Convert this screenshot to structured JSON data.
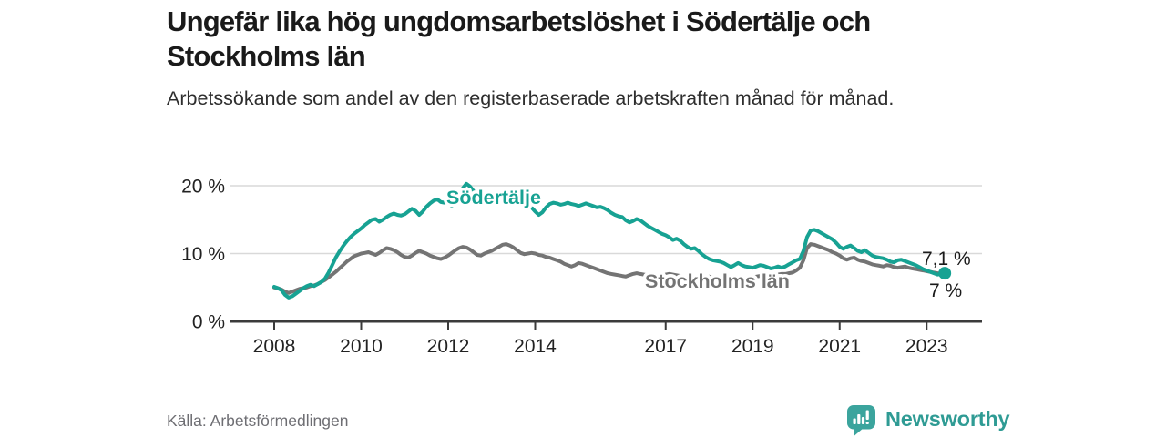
{
  "header": {
    "title": "Ungefär lika hög ungdomsarbetslöshet i Södertälje och Stockholms län",
    "subtitle": "Arbetssökande som andel av den registerbaserade arbetskraften månad för månad."
  },
  "footer": {
    "source": "Källa: Arbetsförmedlingen",
    "brand": "Newsworthy"
  },
  "colors": {
    "accent_teal": "#17a293",
    "line_gray": "#747474",
    "axis": "#3b3b3b",
    "gridline": "#d9d9d9",
    "tick_text": "#222222",
    "value_text": "#1a1a1a",
    "source_text": "#6e6e73",
    "brand_teal": "#2f9b94",
    "brand_icon_teal": "#3ba49d"
  },
  "chart_data": {
    "type": "line",
    "unit": "%",
    "frequency": "monthly",
    "start": "2008-01",
    "end": "2023-06",
    "x_ticks": [
      2008,
      2010,
      2012,
      2014,
      2017,
      2019,
      2021,
      2023
    ],
    "y_ticks": [
      0,
      10,
      20
    ],
    "y_tick_labels": [
      "0 %",
      "10 %",
      "20 %"
    ],
    "ylim": [
      0,
      21
    ],
    "grid": "horizontal",
    "legend_position": "inline-labels",
    "series": [
      {
        "name": "Södertälje",
        "color": "#17a293",
        "end_label": "7,1 %",
        "end_value": 7.1,
        "values": [
          5.1,
          4.9,
          4.6,
          3.9,
          3.5,
          3.7,
          4.1,
          4.5,
          4.9,
          5.2,
          5.4,
          5.2,
          5.5,
          5.8,
          6.3,
          7.2,
          8.3,
          9.4,
          10.3,
          11.1,
          11.8,
          12.4,
          12.9,
          13.3,
          13.7,
          14.2,
          14.6,
          15.0,
          15.1,
          14.7,
          15.0,
          15.4,
          15.7,
          15.9,
          15.7,
          15.6,
          15.8,
          16.2,
          16.6,
          16.3,
          15.7,
          16.2,
          16.9,
          17.4,
          17.8,
          18.0,
          17.6,
          17.5,
          17.5,
          17.0,
          17.8,
          18.8,
          19.6,
          20.3,
          19.9,
          19.2,
          18.5,
          18.1,
          18.3,
          17.8,
          17.6,
          17.9,
          18.1,
          17.8,
          17.6,
          17.9,
          18.1,
          17.8,
          17.4,
          17.1,
          17.3,
          16.8,
          16.2,
          15.7,
          16.1,
          16.8,
          17.3,
          17.5,
          17.4,
          17.2,
          17.3,
          17.5,
          17.3,
          17.2,
          17.0,
          17.2,
          17.4,
          17.2,
          17.0,
          16.8,
          16.9,
          16.7,
          16.4,
          16.0,
          15.7,
          15.5,
          15.4,
          14.9,
          14.6,
          14.8,
          15.1,
          14.9,
          14.5,
          14.1,
          13.8,
          13.5,
          13.2,
          12.9,
          12.7,
          12.4,
          12.0,
          12.2,
          11.9,
          11.4,
          11.0,
          10.7,
          10.8,
          10.4,
          9.9,
          9.5,
          9.2,
          9.0,
          8.9,
          8.8,
          8.6,
          8.3,
          8.0,
          8.3,
          8.6,
          8.3,
          8.1,
          8.0,
          7.9,
          8.1,
          8.3,
          8.2,
          8.0,
          7.8,
          7.9,
          8.1,
          7.9,
          8.1,
          8.4,
          8.7,
          9.0,
          9.2,
          10.4,
          12.4,
          13.4,
          13.5,
          13.3,
          13.0,
          12.7,
          12.4,
          12.1,
          11.6,
          11.0,
          10.7,
          11.0,
          11.2,
          10.8,
          10.4,
          10.2,
          10.5,
          10.1,
          9.7,
          9.5,
          9.4,
          9.3,
          9.1,
          8.8,
          8.7,
          9.0,
          9.1,
          8.9,
          8.7,
          8.5,
          8.3,
          8.0,
          7.7,
          7.5,
          7.3,
          7.1,
          6.9,
          7.0,
          7.1
        ]
      },
      {
        "name": "Stockholms län",
        "color": "#747474",
        "end_label": "7 %",
        "end_value": 7.0,
        "values": [
          5.0,
          4.9,
          4.7,
          4.4,
          4.2,
          4.4,
          4.6,
          4.8,
          4.9,
          5.0,
          5.2,
          5.3,
          5.5,
          5.8,
          6.1,
          6.5,
          6.9,
          7.3,
          7.8,
          8.3,
          8.8,
          9.2,
          9.6,
          9.8,
          10.0,
          10.1,
          10.2,
          10.0,
          9.8,
          10.1,
          10.5,
          10.8,
          10.7,
          10.5,
          10.2,
          9.8,
          9.5,
          9.4,
          9.7,
          10.1,
          10.4,
          10.2,
          10.0,
          9.7,
          9.5,
          9.3,
          9.2,
          9.4,
          9.7,
          10.1,
          10.5,
          10.8,
          11.0,
          10.9,
          10.6,
          10.2,
          9.8,
          9.7,
          10.0,
          10.2,
          10.4,
          10.7,
          11.0,
          11.3,
          11.4,
          11.2,
          10.9,
          10.5,
          10.1,
          9.9,
          10.0,
          10.1,
          10.0,
          9.8,
          9.7,
          9.5,
          9.4,
          9.2,
          9.0,
          8.8,
          8.5,
          8.3,
          8.1,
          8.3,
          8.6,
          8.5,
          8.3,
          8.1,
          7.9,
          7.7,
          7.5,
          7.3,
          7.1,
          7.0,
          6.9,
          6.8,
          6.7,
          6.6,
          6.8,
          7.0,
          7.1,
          7.0,
          6.9,
          6.8,
          6.7,
          6.6,
          6.7,
          6.8,
          6.9,
          7.0,
          6.9,
          6.8,
          6.7,
          6.6,
          6.5,
          6.4,
          6.4,
          6.3,
          6.4,
          6.5,
          6.6,
          6.5,
          6.4,
          6.4,
          6.3,
          6.2,
          6.2,
          6.3,
          6.4,
          6.3,
          6.3,
          6.4,
          6.5,
          6.6,
          6.7,
          6.7,
          6.8,
          6.8,
          6.9,
          6.9,
          7.0,
          7.0,
          7.1,
          7.2,
          7.5,
          7.9,
          9.0,
          10.8,
          11.4,
          11.3,
          11.1,
          10.9,
          10.7,
          10.5,
          10.2,
          10.0,
          9.7,
          9.3,
          9.1,
          9.3,
          9.4,
          9.1,
          8.9,
          8.8,
          8.6,
          8.4,
          8.3,
          8.2,
          8.1,
          8.3,
          8.2,
          8.0,
          7.9,
          8.0,
          8.1,
          7.9,
          7.8,
          7.7,
          7.6,
          7.5,
          7.4,
          7.3,
          7.2,
          7.1,
          7.0,
          7.0
        ]
      }
    ]
  }
}
